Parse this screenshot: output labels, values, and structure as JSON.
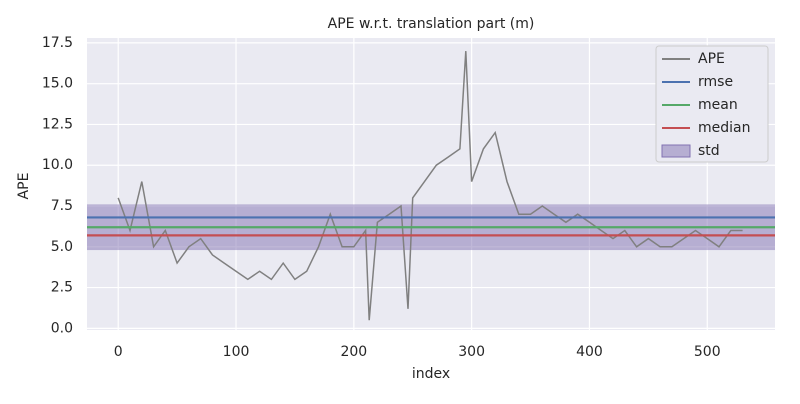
{
  "chart_data": {
    "type": "line",
    "title": "APE w.r.t. translation part (m)",
    "xlabel": "index",
    "ylabel": "APE",
    "x": [
      0,
      10,
      20,
      30,
      40,
      50,
      60,
      70,
      80,
      90,
      100,
      110,
      120,
      130,
      140,
      150,
      160,
      170,
      180,
      190,
      200,
      210,
      213,
      220,
      230,
      240,
      246,
      250,
      260,
      270,
      280,
      290,
      295,
      300,
      310,
      320,
      330,
      340,
      350,
      360,
      370,
      380,
      390,
      400,
      410,
      420,
      430,
      440,
      450,
      460,
      470,
      480,
      490,
      500,
      510,
      520,
      530
    ],
    "series": [
      {
        "name": "APE",
        "color": "#808080",
        "values": [
          8,
          6,
          9,
          5,
          6,
          4,
          5,
          5.5,
          4.5,
          4,
          3.5,
          3,
          3.5,
          3,
          4,
          3,
          3.5,
          5,
          7,
          5,
          5,
          6,
          0.5,
          6.5,
          7,
          7.5,
          1.2,
          8,
          9,
          10,
          10.5,
          11,
          17,
          9,
          11,
          12,
          9,
          7,
          7,
          7.5,
          7,
          6.5,
          7,
          6.5,
          6,
          5.5,
          6,
          5,
          5.5,
          5,
          5,
          5.5,
          6,
          5.5,
          5,
          6,
          6
        ]
      }
    ],
    "stats": [
      {
        "name": "rmse",
        "color": "#4c72b0",
        "value": 6.8
      },
      {
        "name": "mean",
        "color": "#55a868",
        "value": 6.2
      },
      {
        "name": "median",
        "color": "#c44e52",
        "value": 5.7
      },
      {
        "name": "std",
        "color": "#8172b2",
        "value": 1.4
      }
    ],
    "xlim": [
      -26.5,
      557.5
    ],
    "ylim": [
      -0.1,
      17.8
    ],
    "xticks": [
      0,
      100,
      200,
      300,
      400,
      500
    ],
    "yticks": [
      {
        "value": 0,
        "label": "0.0"
      },
      2.5,
      {
        "value": 5,
        "label": "5.0"
      },
      7.5,
      {
        "value": 10,
        "label": "10.0"
      },
      12.5,
      {
        "value": 15,
        "label": "15.0"
      },
      17.5
    ],
    "grid": true,
    "legend": "upper right"
  }
}
